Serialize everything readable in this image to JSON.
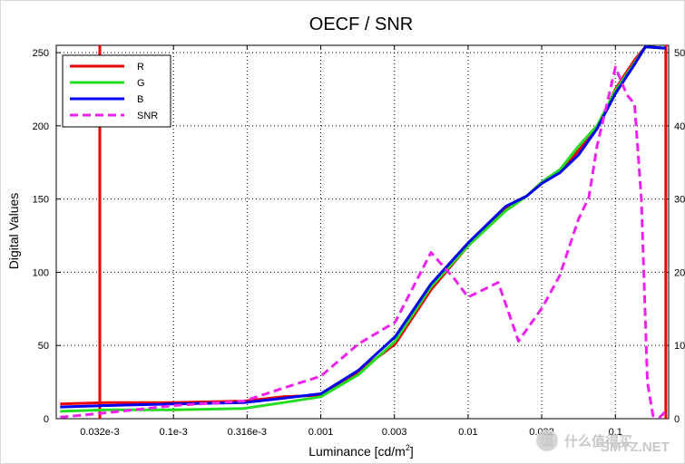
{
  "chart_data": {
    "type": "line",
    "title": "OECF / SNR",
    "xlabel_main": "Luminance [cd/m",
    "xlabel_sup": "2",
    "xlabel_end": "]",
    "ylabel": "Digital Values",
    "x_scale": "log",
    "xlim": [
      1.6e-05,
      0.23
    ],
    "ylim": [
      0,
      255
    ],
    "y2lim": [
      0,
      51
    ],
    "grid": true,
    "legend_position": "top-left",
    "x_ticks": [
      {
        "value": 3.16e-05,
        "label": "0.032e-3"
      },
      {
        "value": 0.0001,
        "label": "0.1e-3"
      },
      {
        "value": 0.000316,
        "label": "0.316e-3"
      },
      {
        "value": 0.001,
        "label": "0.001"
      },
      {
        "value": 0.00316,
        "label": "0.003"
      },
      {
        "value": 0.01,
        "label": "0.01"
      },
      {
        "value": 0.0316,
        "label": "0.032"
      },
      {
        "value": 0.1,
        "label": "0.1"
      }
    ],
    "y_ticks": [
      0,
      50,
      100,
      150,
      200,
      250
    ],
    "y2_ticks": [
      {
        "value": 0,
        "label": "0"
      },
      {
        "value": 10,
        "label": "10"
      },
      {
        "value": 20,
        "label": "20"
      },
      {
        "value": 30,
        "label": "30"
      },
      {
        "value": 40,
        "label": "40"
      },
      {
        "value": 50,
        "label": "50"
      }
    ],
    "series": [
      {
        "name": "R",
        "color": "#ee0000",
        "axis": "left",
        "dash": false,
        "points": [
          [
            1.7e-05,
            10
          ],
          [
            3.5e-05,
            11
          ],
          [
            0.0001,
            11
          ],
          [
            0.0003,
            12
          ],
          [
            0.00056,
            15
          ],
          [
            0.001,
            16
          ],
          [
            0.0018,
            32
          ],
          [
            0.0032,
            51
          ],
          [
            0.0056,
            88
          ],
          [
            0.01,
            118
          ],
          [
            0.018,
            144
          ],
          [
            0.025,
            152
          ],
          [
            0.032,
            162
          ],
          [
            0.042,
            168
          ],
          [
            0.056,
            183
          ],
          [
            0.075,
            198
          ],
          [
            0.1,
            225
          ],
          [
            0.135,
            245
          ],
          [
            0.16,
            254
          ],
          [
            0.22,
            253
          ]
        ]
      },
      {
        "name": "G",
        "color": "#22dd22",
        "axis": "left",
        "dash": false,
        "points": [
          [
            1.7e-05,
            5
          ],
          [
            3.5e-05,
            6
          ],
          [
            0.0001,
            6
          ],
          [
            0.0003,
            7
          ],
          [
            0.00056,
            11
          ],
          [
            0.001,
            15
          ],
          [
            0.0018,
            30
          ],
          [
            0.0032,
            53
          ],
          [
            0.0056,
            90
          ],
          [
            0.01,
            118
          ],
          [
            0.018,
            142
          ],
          [
            0.025,
            152
          ],
          [
            0.032,
            162
          ],
          [
            0.042,
            170
          ],
          [
            0.056,
            186
          ],
          [
            0.075,
            200
          ],
          [
            0.1,
            224
          ],
          [
            0.135,
            243
          ],
          [
            0.16,
            254
          ],
          [
            0.22,
            253
          ]
        ]
      },
      {
        "name": "B",
        "color": "#0000ee",
        "axis": "left",
        "dash": false,
        "points": [
          [
            1.7e-05,
            8
          ],
          [
            3.5e-05,
            9
          ],
          [
            0.0001,
            10
          ],
          [
            0.0003,
            11
          ],
          [
            0.00056,
            14
          ],
          [
            0.001,
            17
          ],
          [
            0.0018,
            33
          ],
          [
            0.0032,
            56
          ],
          [
            0.0056,
            92
          ],
          [
            0.01,
            120
          ],
          [
            0.018,
            145
          ],
          [
            0.025,
            152
          ],
          [
            0.032,
            161
          ],
          [
            0.042,
            168
          ],
          [
            0.056,
            180
          ],
          [
            0.075,
            198
          ],
          [
            0.1,
            222
          ],
          [
            0.135,
            242
          ],
          [
            0.16,
            254
          ],
          [
            0.22,
            253
          ]
        ]
      },
      {
        "name": "SNR",
        "color": "#ee22ee",
        "axis": "right",
        "dash": true,
        "points": [
          [
            1.7e-05,
            0.2
          ],
          [
            3.5e-05,
            0.8
          ],
          [
            0.0001,
            1.8
          ],
          [
            0.0003,
            2.4
          ],
          [
            0.00056,
            4.2
          ],
          [
            0.001,
            5.8
          ],
          [
            0.0018,
            10.2
          ],
          [
            0.0032,
            13.2
          ],
          [
            0.0056,
            22.7
          ],
          [
            0.008,
            19.2
          ],
          [
            0.01,
            16.6
          ],
          [
            0.016,
            18.6
          ],
          [
            0.022,
            10.6
          ],
          [
            0.032,
            15.2
          ],
          [
            0.042,
            19.6
          ],
          [
            0.056,
            27.2
          ],
          [
            0.066,
            30.2
          ],
          [
            0.075,
            37.2
          ],
          [
            0.1,
            48.0
          ],
          [
            0.12,
            44.2
          ],
          [
            0.135,
            43.0
          ],
          [
            0.15,
            30.0
          ],
          [
            0.165,
            5.0
          ],
          [
            0.18,
            0.4
          ],
          [
            0.2,
            0.2
          ],
          [
            0.22,
            1.0
          ]
        ]
      }
    ],
    "vertical_lines": [
      {
        "x": 3.16e-05,
        "color": "#ee0000"
      },
      {
        "x": 0.22,
        "color": "#ee0000"
      }
    ]
  },
  "watermark": {
    "glyph": "值",
    "text": "什么值得买",
    "site": "SMYZ.NET"
  }
}
